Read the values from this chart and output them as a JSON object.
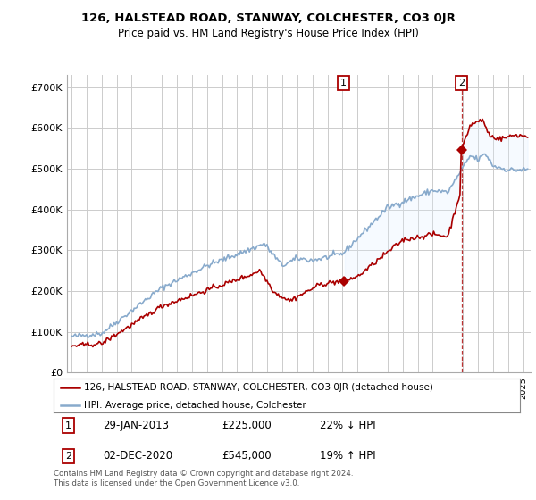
{
  "title": "126, HALSTEAD ROAD, STANWAY, COLCHESTER, CO3 0JR",
  "subtitle": "Price paid vs. HM Land Registry's House Price Index (HPI)",
  "ylabel_ticks": [
    "£0",
    "£100K",
    "£200K",
    "£300K",
    "£400K",
    "£500K",
    "£600K",
    "£700K"
  ],
  "ytick_values": [
    0,
    100000,
    200000,
    300000,
    400000,
    500000,
    600000,
    700000
  ],
  "ylim": [
    0,
    730000
  ],
  "xlim_start": 1994.7,
  "xlim_end": 2025.5,
  "sale1_x": 2013.08,
  "sale1_y": 225000,
  "sale2_x": 2020.92,
  "sale2_y": 545000,
  "sale1_label": "29-JAN-2013",
  "sale1_price": "£225,000",
  "sale1_hpi": "22% ↓ HPI",
  "sale2_label": "02-DEC-2020",
  "sale2_price": "£545,000",
  "sale2_hpi": "19% ↑ HPI",
  "legend_line1": "126, HALSTEAD ROAD, STANWAY, COLCHESTER, CO3 0JR (detached house)",
  "legend_line2": "HPI: Average price, detached house, Colchester",
  "footnote": "Contains HM Land Registry data © Crown copyright and database right 2024.\nThis data is licensed under the Open Government Licence v3.0.",
  "line_color_red": "#aa0000",
  "line_color_blue": "#88aacc",
  "fill_color_blue": "#ddeeff",
  "background_color": "#ffffff",
  "grid_color": "#cccccc"
}
